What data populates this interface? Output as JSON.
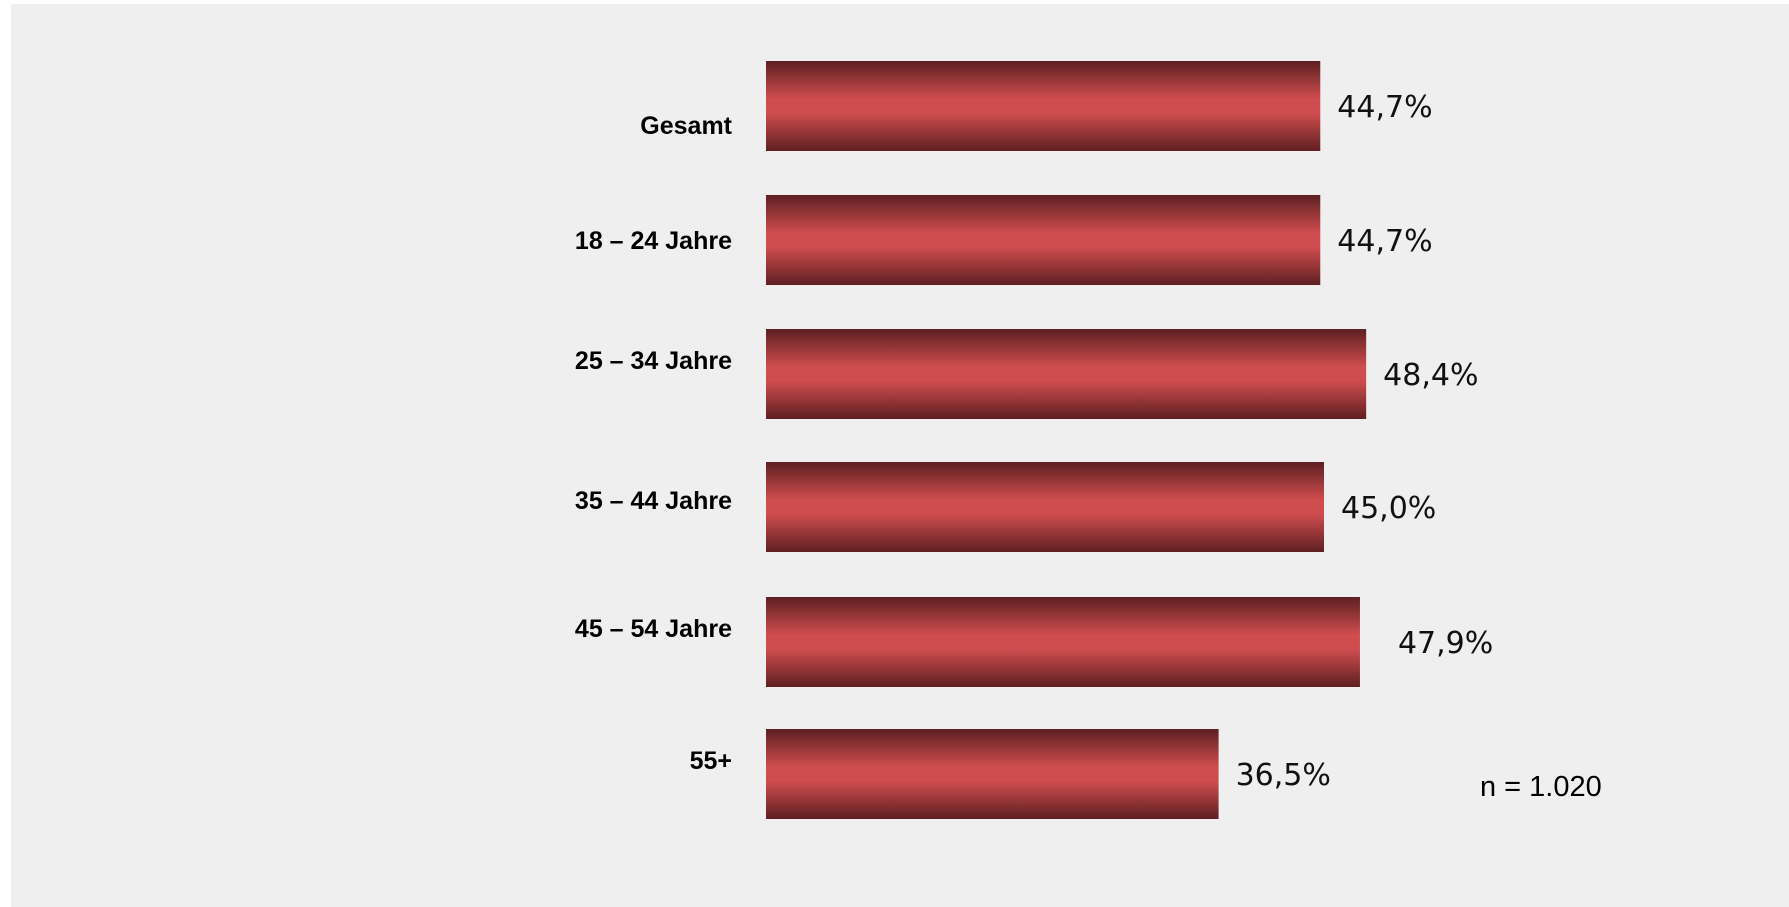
{
  "chart_data": {
    "type": "bar",
    "orientation": "horizontal",
    "categories": [
      "Gesamt",
      "18 – 24 Jahre",
      "25 – 34 Jahre",
      "35 – 44 Jahre",
      "45 – 54 Jahre",
      "55+"
    ],
    "values": [
      44.7,
      44.7,
      48.4,
      45.0,
      47.9,
      36.5
    ],
    "value_labels": [
      "44,7%",
      "44,7%",
      "48,4%",
      "45,0%",
      "47,9%",
      "36,5%"
    ],
    "unit": "%",
    "xlim": [
      0,
      100
    ],
    "grid": false,
    "legend": "none",
    "title": "",
    "xlabel": "",
    "ylabel": "",
    "note": "n = 1.020",
    "colors": {
      "bar_edge": "#5e1f22",
      "bar_center": "#cf4d4e",
      "background": "#efefef"
    }
  }
}
